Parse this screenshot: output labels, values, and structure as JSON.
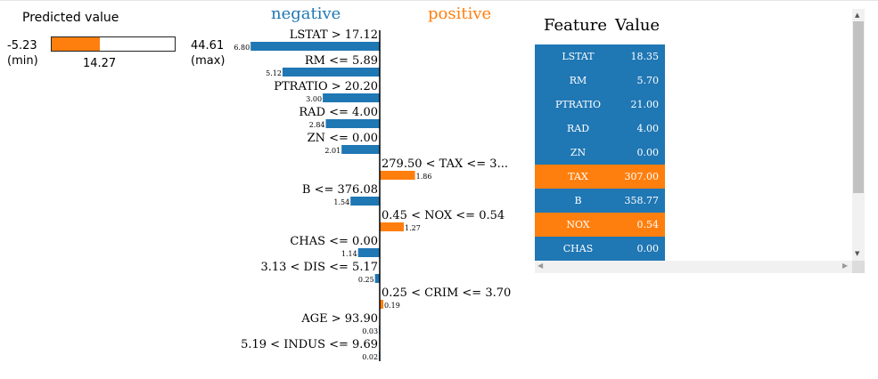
{
  "predicted": {
    "title": "Predicted value",
    "min": -5.23,
    "max": 44.61,
    "value": 14.27,
    "min_text": "-5.23",
    "min_label": "(min)",
    "max_text": "44.61",
    "max_label": "(max)",
    "value_text": "14.27",
    "color": "#ff7f0e"
  },
  "headers": {
    "negative": "negative",
    "positive": "positive"
  },
  "colors": {
    "negative": "#1f77b4",
    "positive": "#ff7f0e"
  },
  "chart_data": {
    "type": "bar",
    "orientation": "horizontal",
    "categories": [
      "LSTAT > 17.12",
      "RM <= 5.89",
      "PTRATIO > 20.20",
      "RAD <= 4.00",
      "ZN <= 0.00",
      "279.50 < TAX <= 3...",
      "B <= 376.08",
      "0.45 < NOX <= 0.54",
      "CHAS <= 0.00",
      "3.13 < DIS <= 5.17",
      "0.25 < CRIM <= 3.70",
      "AGE > 93.90",
      "5.19 < INDUS <= 9.69"
    ],
    "values": [
      -6.8,
      -5.12,
      -3.0,
      -2.84,
      -2.01,
      1.86,
      -1.54,
      1.27,
      -1.14,
      -0.25,
      0.19,
      -0.03,
      -0.02
    ],
    "value_labels": [
      "6.80",
      "5.12",
      "3.00",
      "2.84",
      "2.01",
      "1.86",
      "1.54",
      "1.27",
      "1.14",
      "0.25",
      "0.19",
      "0.03",
      "0.02"
    ],
    "series": [
      {
        "name": "negative"
      },
      {
        "name": "positive"
      }
    ]
  },
  "table": {
    "header_feature": "Feature",
    "header_value": "Value",
    "rows": [
      {
        "feature": "LSTAT",
        "value": "18.35",
        "color": "#1f77b4"
      },
      {
        "feature": "RM",
        "value": "5.70",
        "color": "#1f77b4"
      },
      {
        "feature": "PTRATIO",
        "value": "21.00",
        "color": "#1f77b4"
      },
      {
        "feature": "RAD",
        "value": "4.00",
        "color": "#1f77b4"
      },
      {
        "feature": "ZN",
        "value": "0.00",
        "color": "#1f77b4"
      },
      {
        "feature": "TAX",
        "value": "307.00",
        "color": "#ff7f0e"
      },
      {
        "feature": "B",
        "value": "358.77",
        "color": "#1f77b4"
      },
      {
        "feature": "NOX",
        "value": "0.54",
        "color": "#ff7f0e"
      },
      {
        "feature": "CHAS",
        "value": "0.00",
        "color": "#1f77b4"
      }
    ]
  }
}
